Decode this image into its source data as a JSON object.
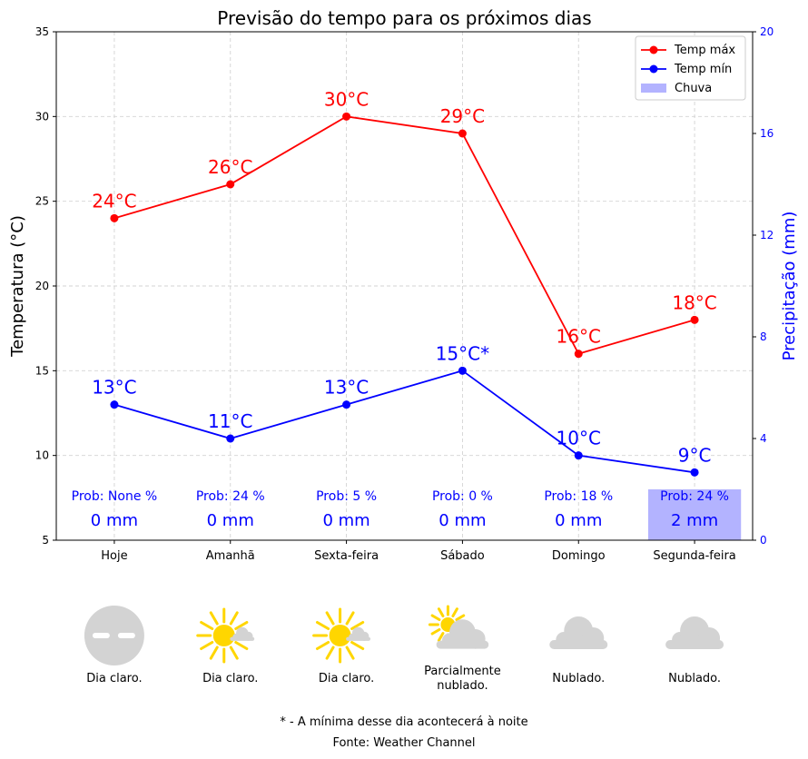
{
  "chart_data": {
    "type": "line",
    "title": "Previsão do tempo para os próximos dias",
    "categories": [
      "Hoje",
      "Amanhã",
      "Sexta-feira",
      "Sábado",
      "Domingo",
      "Segunda-feira"
    ],
    "ylabel": "Temperatura (°C)",
    "ylabel_right": "Precipitação (mm)",
    "ylim": [
      5,
      35
    ],
    "yticks": [
      5,
      10,
      15,
      20,
      25,
      30,
      35
    ],
    "ylim_right": [
      0,
      20
    ],
    "yticks_right": [
      0,
      4,
      8,
      12,
      16,
      20
    ],
    "grid": true,
    "legend_position": "top-right",
    "series": [
      {
        "name": "Temp máx",
        "color": "#ff0000",
        "values": [
          24,
          26,
          30,
          29,
          16,
          18
        ],
        "labels": [
          "24°C",
          "26°C",
          "30°C",
          "29°C",
          "16°C",
          "18°C"
        ]
      },
      {
        "name": "Temp mín",
        "color": "#0000ff",
        "values": [
          13,
          11,
          13,
          15,
          10,
          9
        ],
        "labels": [
          "13°C",
          "11°C",
          "13°C",
          "15°C*",
          "10°C",
          "9°C"
        ]
      }
    ],
    "rain": {
      "name": "Chuva",
      "color": "#b3b3ff",
      "values": [
        0,
        0,
        0,
        0,
        0,
        2
      ],
      "mm_labels": [
        "0 mm",
        "0 mm",
        "0 mm",
        "0 mm",
        "0 mm",
        "2 mm"
      ],
      "prob_labels": [
        "Prob: None %",
        "Prob: 24 %",
        "Prob: 5 %",
        "Prob: 0 %",
        "Prob: 18 %",
        "Prob: 24 %"
      ]
    },
    "conditions": [
      {
        "icon": "night-clear-icon",
        "text": "Dia claro."
      },
      {
        "icon": "sun-cloud-icon",
        "text": "Dia claro."
      },
      {
        "icon": "sun-cloud-icon",
        "text": "Dia claro."
      },
      {
        "icon": "partly-cloudy-icon",
        "text": "Parcialmente nublado."
      },
      {
        "icon": "cloud-icon",
        "text": "Nublado."
      },
      {
        "icon": "cloud-icon",
        "text": "Nublado."
      }
    ]
  },
  "footer": {
    "note": "* - A mínima desse dia acontecerá à noite",
    "source": "Fonte: Weather Channel"
  }
}
